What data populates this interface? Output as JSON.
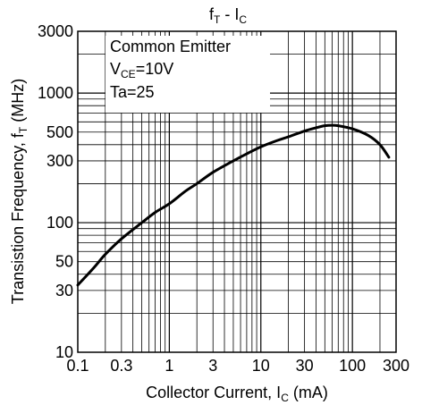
{
  "chart_data": {
    "type": "line",
    "title": {
      "main": "f",
      "sub": "T",
      "mid": " - I",
      "sub2": "C"
    },
    "xlabel": {
      "main": "Collector Current, I",
      "sub": "C",
      "unit": " (mA)"
    },
    "ylabel": {
      "main": "Transistion Frequency, f",
      "sub": "T",
      "unit": " (MHz)"
    },
    "xscale": "log",
    "yscale": "log",
    "xlim": [
      0.1,
      300
    ],
    "ylim": [
      10,
      3000
    ],
    "grid": true,
    "x_ticks": [
      {
        "value": 0.1,
        "label": "0.1"
      },
      {
        "value": 0.3,
        "label": "0.3"
      },
      {
        "value": 1,
        "label": "1"
      },
      {
        "value": 3,
        "label": "3"
      },
      {
        "value": 10,
        "label": "10"
      },
      {
        "value": 30,
        "label": "30"
      },
      {
        "value": 100,
        "label": "100"
      },
      {
        "value": 300,
        "label": "300"
      }
    ],
    "y_ticks": [
      {
        "value": 10,
        "label": "10"
      },
      {
        "value": 30,
        "label": "30"
      },
      {
        "value": 50,
        "label": "50"
      },
      {
        "value": 100,
        "label": "100"
      },
      {
        "value": 300,
        "label": "300"
      },
      {
        "value": 500,
        "label": "500"
      },
      {
        "value": 1000,
        "label": "1000"
      },
      {
        "value": 3000,
        "label": "3000"
      }
    ],
    "annotations": {
      "line1": "Common Emitter",
      "line2_main": "V",
      "line2_sub": "CE",
      "line2_rest": "=10V",
      "line3": "Ta=25"
    },
    "series": [
      {
        "color": "#000000",
        "x": [
          0.1,
          0.15,
          0.2,
          0.3,
          0.5,
          0.7,
          1,
          1.5,
          2,
          3,
          5,
          7,
          10,
          15,
          20,
          30,
          40,
          50,
          60,
          70,
          100,
          150,
          200,
          250
        ],
        "y": [
          33,
          45,
          57,
          75,
          100,
          120,
          140,
          175,
          200,
          245,
          300,
          340,
          385,
          430,
          460,
          510,
          540,
          560,
          565,
          560,
          530,
          470,
          400,
          320
        ]
      }
    ]
  }
}
